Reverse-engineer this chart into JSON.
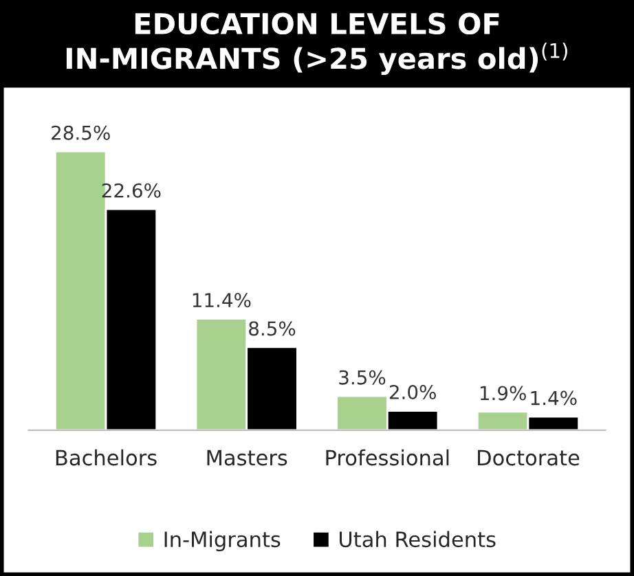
{
  "chart_data": {
    "type": "bar",
    "title": "EDUCATION LEVELS OF\nIN-MIGRANTS (>25 years old)$^{(1)}$",
    "categories": [
      "Bachelors",
      "Masters",
      "Professional",
      "Doctorate"
    ],
    "series": [
      {
        "name": "In-Migrants",
        "color": "#a9d18e",
        "values": [
          28.5,
          11.4,
          3.5,
          1.9
        ],
        "value_labels": [
          "28.5%",
          "11.4%",
          "3.5%",
          "1.9%"
        ]
      },
      {
        "name": "Utah Residents",
        "color": "#000000",
        "values": [
          22.6,
          8.5,
          2.0,
          1.4
        ],
        "value_labels": [
          "22.6%",
          "8.5%",
          "2.0%",
          "1.4%"
        ]
      }
    ],
    "legend": "bottom",
    "grid": false
  }
}
